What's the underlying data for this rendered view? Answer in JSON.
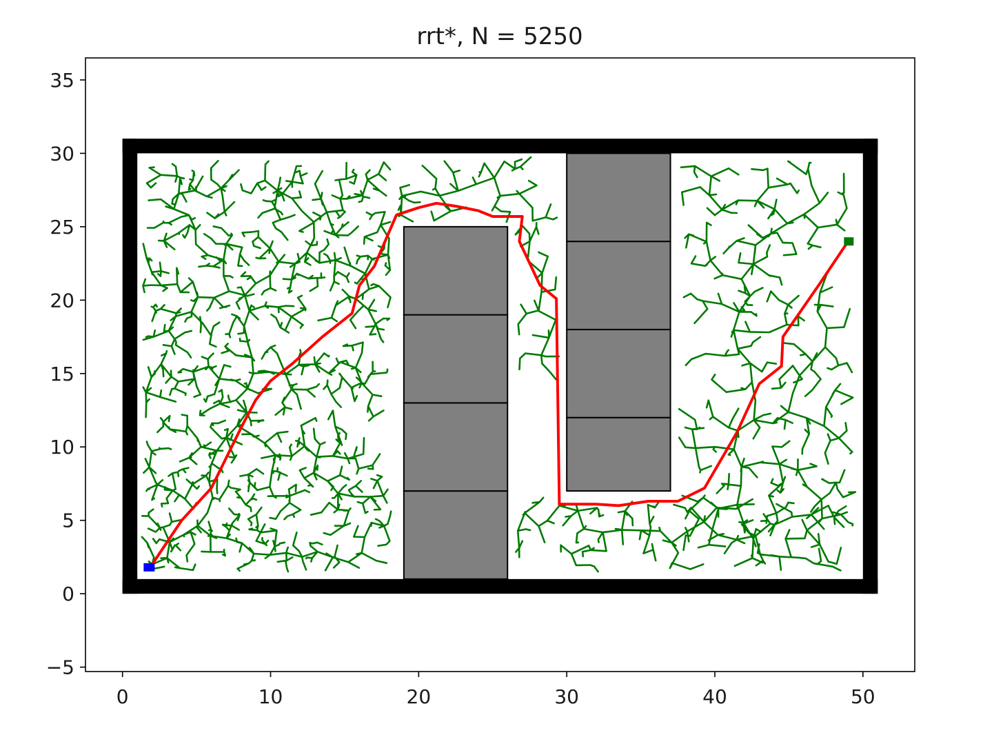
{
  "chart_data": {
    "type": "path-planning-plot",
    "title": "rrt*, N = 5250",
    "xlabel": "",
    "ylabel": "",
    "xlim": [
      -2.5,
      53.5
    ],
    "ylim": [
      -5.3,
      36.5
    ],
    "x_ticks": [
      0,
      10,
      20,
      30,
      40,
      50
    ],
    "y_ticks": [
      -5,
      0,
      5,
      10,
      15,
      20,
      25,
      30,
      35
    ],
    "grid": false,
    "legend": "none",
    "colors": {
      "tree": "#007a00",
      "path": "#ff0000",
      "wall": "#000000",
      "obstacle_fill": "#808080",
      "obstacle_edge": "#000000",
      "start": "#0000ff"
    },
    "boundary": {
      "x0": 0,
      "y0": 0,
      "x1": 51,
      "y1": 31,
      "thickness": 1
    },
    "obstacles": [
      {
        "x": 19,
        "y": 1,
        "w": 7,
        "h": 6
      },
      {
        "x": 19,
        "y": 7,
        "w": 7,
        "h": 6
      },
      {
        "x": 19,
        "y": 13,
        "w": 7,
        "h": 6
      },
      {
        "x": 19,
        "y": 19,
        "w": 7,
        "h": 6
      },
      {
        "x": 30,
        "y": 7,
        "w": 7,
        "h": 5
      },
      {
        "x": 30,
        "y": 12,
        "w": 7,
        "h": 6
      },
      {
        "x": 30,
        "y": 18,
        "w": 7,
        "h": 6
      },
      {
        "x": 30,
        "y": 24,
        "w": 7,
        "h": 6
      }
    ],
    "start": [
      1.8,
      1.8
    ],
    "goal": [
      49.0,
      24.0
    ],
    "tree_regions": [
      {
        "name": "left",
        "root": [
          2,
          2
        ],
        "xmin": 1.3,
        "xmax": 18.2,
        "ymin": 1.5,
        "ymax": 29.5
      },
      {
        "name": "upper-middle",
        "root": [
          18.8,
          25.8
        ],
        "xmin": 18.5,
        "xmax": 29.5,
        "ymin": 25.2,
        "ymax": 29.8
      },
      {
        "name": "corridor",
        "root": [
          27.5,
          24
        ],
        "xmin": 26.5,
        "xmax": 29.5,
        "ymin": 14.5,
        "ymax": 25.5
      },
      {
        "name": "lower-right",
        "root": [
          29.5,
          6
        ],
        "xmin": 26.5,
        "xmax": 49.5,
        "ymin": 1.5,
        "ymax": 6.8
      },
      {
        "name": "right",
        "root": [
          40,
          10
        ],
        "xmin": 37.5,
        "xmax": 49.5,
        "ymin": 1.5,
        "ymax": 29.5
      }
    ],
    "path": [
      [
        2.0,
        2.0
      ],
      [
        4.0,
        5.0
      ],
      [
        6.0,
        7.2
      ],
      [
        8.0,
        11.3
      ],
      [
        9.0,
        13.2
      ],
      [
        10.0,
        14.5
      ],
      [
        11.5,
        15.7
      ],
      [
        13.5,
        17.5
      ],
      [
        15.5,
        19.1
      ],
      [
        16.0,
        21.0
      ],
      [
        17.0,
        22.3
      ],
      [
        18.5,
        25.8
      ],
      [
        20.0,
        26.3
      ],
      [
        21.2,
        26.6
      ],
      [
        22.5,
        26.4
      ],
      [
        24.0,
        26.1
      ],
      [
        25.0,
        25.7
      ],
      [
        27.0,
        25.7
      ],
      [
        26.8,
        24.0
      ],
      [
        27.5,
        22.5
      ],
      [
        28.2,
        21.0
      ],
      [
        29.3,
        20.1
      ],
      [
        29.5,
        6.1
      ],
      [
        32.0,
        6.1
      ],
      [
        33.5,
        6.0
      ],
      [
        35.5,
        6.3
      ],
      [
        37.5,
        6.3
      ],
      [
        39.3,
        7.2
      ],
      [
        41.5,
        11.0
      ],
      [
        43.0,
        14.3
      ],
      [
        44.5,
        15.5
      ],
      [
        44.6,
        17.5
      ],
      [
        47.0,
        21.0
      ],
      [
        49.0,
        24.0
      ]
    ]
  }
}
